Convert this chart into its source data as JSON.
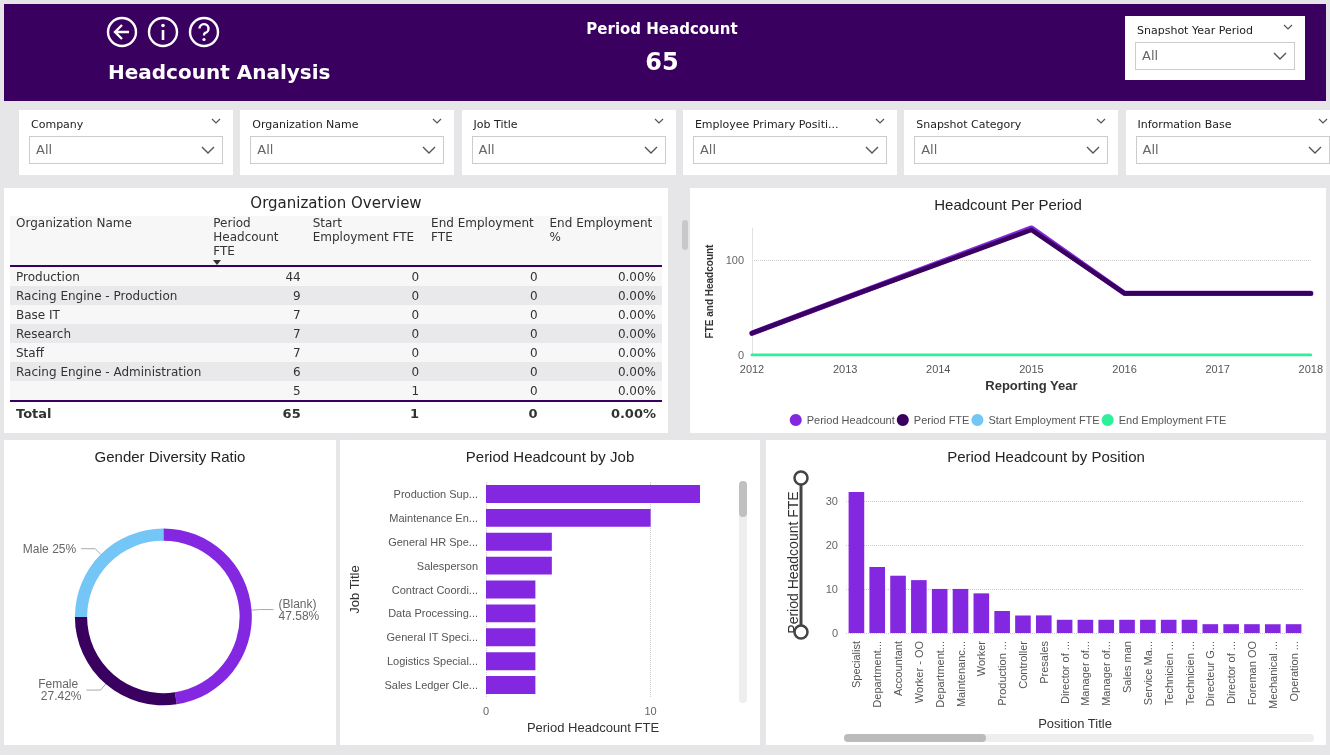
{
  "chart_data": [
    {
      "type": "other",
      "title": "Headcount Analysis",
      "subtitle": "Period Headcount",
      "annotations": [
        "65"
      ],
      "categories": [
        "Snapshot Year Period",
        "Company",
        "Organization Name",
        "Job Title",
        "Employee Primary Positi...",
        "Snapshot Category",
        "Information Base"
      ],
      "value_labels": [
        "All",
        "All",
        "All",
        "All",
        "All",
        "All",
        "All"
      ]
    },
    {
      "type": "other",
      "title": "Organization Overview",
      "xlabel": "Organization Name",
      "categories": [
        "Period Headcount FTE",
        "Start Employment FTE",
        "End Employment FTE",
        "End Employment %"
      ],
      "y_categories": [
        "Production",
        "Racing Engine - Production",
        "Base IT",
        "Research",
        "Staff",
        "Racing Engine - Administration",
        null
      ],
      "cell_labels": [
        [
          "44",
          "0",
          "0",
          "0.00%"
        ],
        [
          "9",
          "0",
          "0",
          "0.00%"
        ],
        [
          "7",
          "0",
          "0",
          "0.00%"
        ],
        [
          "7",
          "0",
          "0",
          "0.00%"
        ],
        [
          "7",
          "0",
          "0",
          "0.00%"
        ],
        [
          "6",
          "0",
          "0",
          "0.00%"
        ],
        [
          "5",
          "1",
          "0",
          "0.00%"
        ]
      ],
      "annotations": [
        "Total"
      ],
      "totals": [
        "65",
        "1",
        "0",
        "0.00%"
      ]
    },
    {
      "type": "line",
      "title": "Headcount Per Period",
      "xlabel": "Reporting Year",
      "ylabel": "FTE and Headcount",
      "categories": [
        "2012",
        "2013",
        "2014",
        "2015",
        "2016",
        "2017",
        "2018"
      ],
      "series": [
        {
          "name": "Period Headcount",
          "color": "#8427e0",
          "values": [
            23,
            60,
            97,
            134,
            65,
            65,
            65
          ]
        },
        {
          "name": "Period FTE",
          "color": "#3a0060",
          "values": [
            23,
            60,
            96,
            132,
            65,
            65,
            65
          ]
        },
        {
          "name": "Start Employment FTE",
          "color": "#73c6f5",
          "values": [
            null,
            null,
            null,
            null,
            null,
            null,
            null
          ]
        },
        {
          "name": "End Employment FTE",
          "color": "#2ef09a",
          "values": [
            0,
            0,
            0,
            0,
            0,
            0,
            0
          ]
        }
      ],
      "ylim": [
        0,
        134
      ],
      "yticks": [
        0,
        100
      ],
      "grid": "y",
      "legend": "bottom",
      "marker": "none",
      "line_style": "solid"
    },
    {
      "type": "donut",
      "title": "Gender Diversity Ratio",
      "categories": [
        "(Blank)",
        "Female",
        "Male"
      ],
      "values": [
        47.58,
        27.42,
        25
      ],
      "colors": [
        "#8427e0",
        "#3a0060",
        "#73c6f5"
      ],
      "value_labels": [
        "47.58%",
        "27.42%",
        "25%"
      ]
    },
    {
      "type": "bar",
      "orientation": "horizontal",
      "title": "Period Headcount by Job",
      "xlabel": "Period Headcount FTE",
      "ylabel": "Job Title",
      "categories": [
        "Production Sup...",
        "Maintenance En...",
        "General HR Spe...",
        "Salesperson",
        "Contract Coordi...",
        "Data Processing...",
        "General IT Speci...",
        "Logistics Special...",
        "Sales Ledger Cle..."
      ],
      "values": [
        13,
        10,
        4,
        4,
        3,
        3,
        3,
        3,
        3
      ],
      "color": "#8427e0",
      "xlim": [
        0,
        13
      ],
      "xticks": [
        0,
        10
      ],
      "grid": "x"
    },
    {
      "type": "bar",
      "title": "Period Headcount by Position",
      "xlabel": "Position Title",
      "ylabel": "Period Headcount FTE",
      "categories": [
        "Specialist",
        "Department...",
        "Accountant",
        "Worker - OO",
        "Department...",
        "Maintenanc...",
        "Worker",
        "Production ...",
        "Controller",
        "Presales",
        "Director of ...",
        "Manager of...",
        "Manager of...",
        "Sales man",
        "Service Ma...",
        "Technicien ...",
        "Technicien ...",
        "Directeur G...",
        "Director of ...",
        "Foreman OO",
        "Mechanical ...",
        "Operation ..."
      ],
      "values": [
        32,
        15,
        13,
        12,
        10,
        10,
        9,
        5,
        4,
        4,
        3,
        3,
        3,
        3,
        3,
        3,
        3,
        2,
        2,
        2,
        2,
        2
      ],
      "color": "#8427e0",
      "ylim": [
        0,
        32
      ],
      "yticks": [
        0,
        10,
        20,
        30
      ],
      "grid": "y"
    }
  ]
}
